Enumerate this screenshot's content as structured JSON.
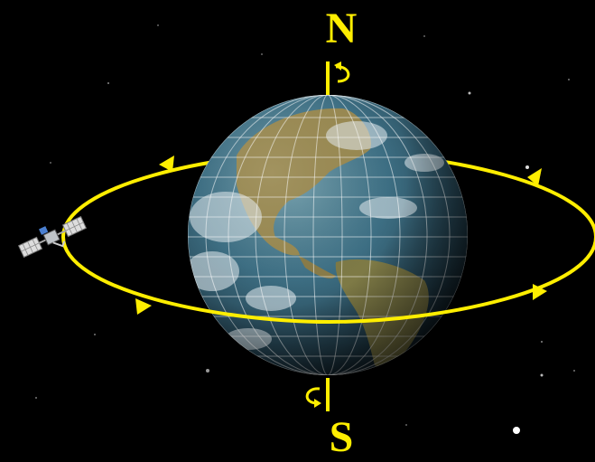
{
  "labels": {
    "north": "N",
    "south": "S"
  },
  "colors": {
    "background": "#000000",
    "orbit": "#ffee00",
    "axis": "#ffee00",
    "label": "#ffee00",
    "ocean": "#3d6f84",
    "land": "#9a8a52",
    "grid": "#ffffff"
  },
  "icons": {
    "satellite": "satellite-icon",
    "spin_north": "rotation-arrow-icon",
    "spin_south": "rotation-arrow-icon",
    "orbit_arrows": "orbit-direction-arrow-icon"
  }
}
